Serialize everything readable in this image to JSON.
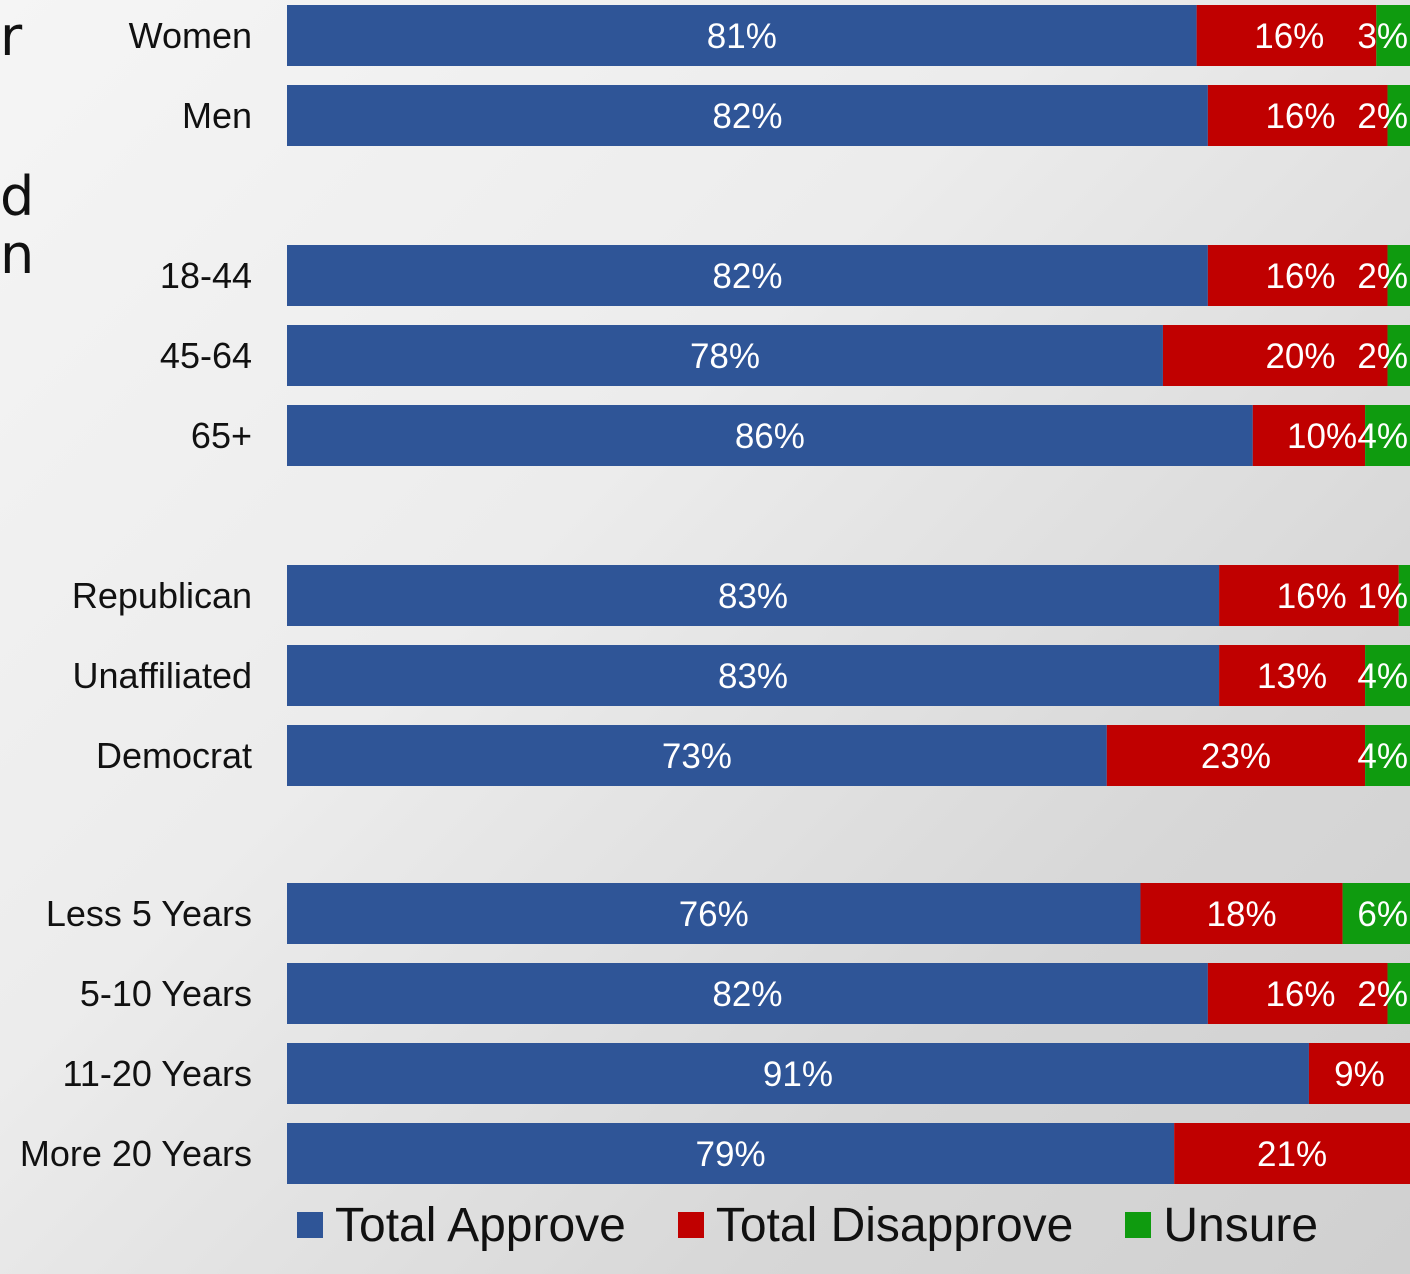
{
  "heading_fragments": [
    "r",
    "d",
    "n"
  ],
  "colors": {
    "approve": "#2f5597",
    "disapprove": "#c00000",
    "unsure": "#0f9b0f"
  },
  "legend": [
    {
      "label": "Total Approve",
      "color": "#2f5597"
    },
    {
      "label": "Total Disapprove",
      "color": "#c00000"
    },
    {
      "label": "Unsure",
      "color": "#0f9b0f"
    }
  ],
  "chart_data": {
    "type": "bar",
    "orientation": "horizontal",
    "stacked": true,
    "percent_scale": [
      0,
      100
    ],
    "categories": [
      "Women",
      "Men",
      "18-44",
      "45-64",
      "65+",
      "Republican",
      "Unaffiliated",
      "Democrat",
      "Less 5 Years",
      "5-10 Years",
      "11-20 Years",
      "More 20 Years"
    ],
    "groups": [
      [
        "Women",
        "Men"
      ],
      [
        "18-44",
        "45-64",
        "65+"
      ],
      [
        "Republican",
        "Unaffiliated",
        "Democrat"
      ],
      [
        "Less 5 Years",
        "5-10 Years",
        "11-20 Years",
        "More 20 Years"
      ]
    ],
    "series": [
      {
        "name": "Total Approve",
        "values": [
          81,
          82,
          82,
          78,
          86,
          83,
          83,
          73,
          76,
          82,
          91,
          79
        ]
      },
      {
        "name": "Total Disapprove",
        "values": [
          16,
          16,
          16,
          20,
          10,
          16,
          13,
          23,
          18,
          16,
          9,
          21
        ]
      },
      {
        "name": "Unsure",
        "values": [
          3,
          2,
          2,
          2,
          4,
          1,
          4,
          4,
          6,
          2,
          0,
          0
        ]
      }
    ],
    "data_labels": [
      [
        "81%",
        "82%",
        "82%",
        "78%",
        "86%",
        "83%",
        "83%",
        "73%",
        "76%",
        "82%",
        "91%",
        "79%"
      ],
      [
        "16%",
        "16%",
        "16%",
        "20%",
        "10%",
        "16%",
        "13%",
        "23%",
        "18%",
        "16%",
        "9%",
        "21%"
      ],
      [
        "3%",
        "2%",
        "2%",
        "2%",
        "4%",
        "1%",
        "4%",
        "4%",
        "6%",
        "2%",
        "",
        ""
      ]
    ],
    "legend_position": "bottom",
    "grid": false
  }
}
